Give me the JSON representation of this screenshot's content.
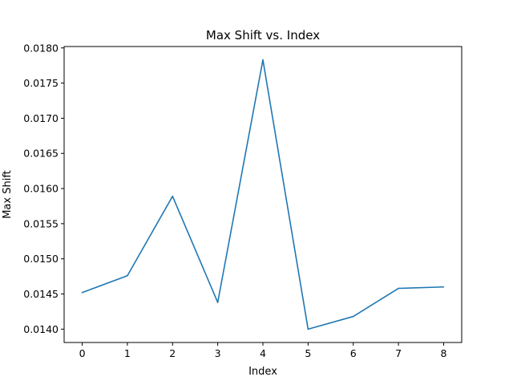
{
  "chart_data": {
    "type": "line",
    "title": "Max Shift vs. Index",
    "xlabel": "Index",
    "ylabel": "Max Shift",
    "x": [
      0,
      1,
      2,
      3,
      4,
      5,
      6,
      7,
      8
    ],
    "series": [
      {
        "values": [
          0.01452,
          0.01476,
          0.01589,
          0.01438,
          0.01783,
          0.014,
          0.01418,
          0.01458,
          0.0146
        ],
        "color": "#1f77b4"
      }
    ],
    "xlim": [
      -0.4,
      8.4
    ],
    "ylim": [
      0.01381,
      0.01802
    ],
    "xticks": [
      "0",
      "1",
      "2",
      "3",
      "4",
      "5",
      "6",
      "7",
      "8"
    ],
    "yticks": [
      "0.0140",
      "0.0145",
      "0.0150",
      "0.0155",
      "0.0160",
      "0.0165",
      "0.0170",
      "0.0175",
      "0.0180"
    ],
    "grid": false,
    "legend": "none"
  }
}
